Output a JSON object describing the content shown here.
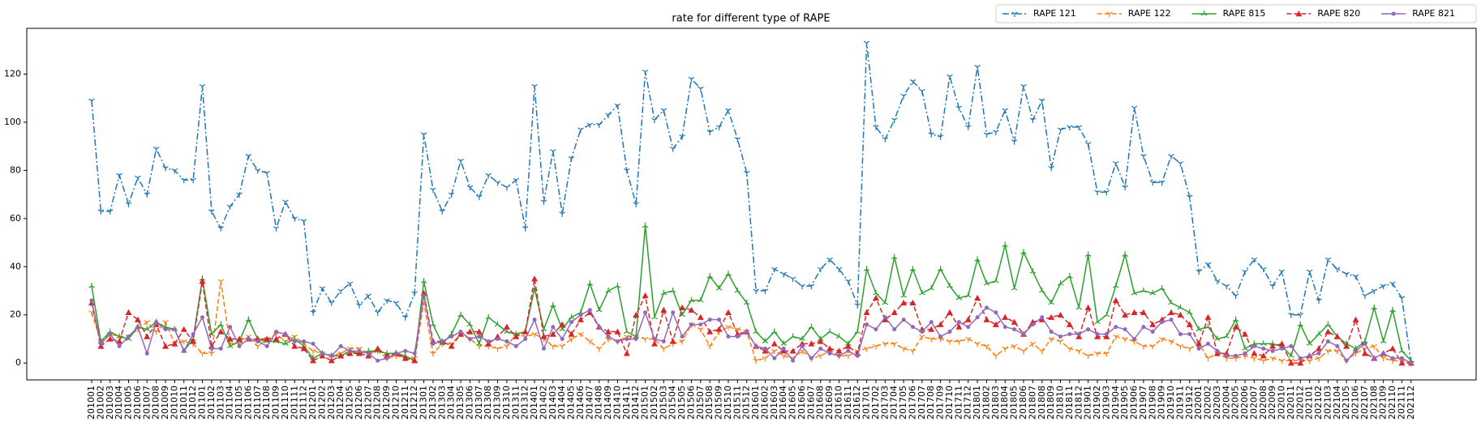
{
  "chart_data": {
    "type": "line",
    "title": "rate for different type of RAPE",
    "categories": [
      "201001",
      "201002",
      "201003",
      "201004",
      "201005",
      "201006",
      "201007",
      "201008",
      "201009",
      "201010",
      "201011",
      "201012",
      "201101",
      "201102",
      "201103",
      "201104",
      "201105",
      "201106",
      "201107",
      "201108",
      "201109",
      "201110",
      "201111",
      "201112",
      "201201",
      "201202",
      "201203",
      "201204",
      "201205",
      "201206",
      "201207",
      "201208",
      "201209",
      "201210",
      "201211",
      "201212",
      "201301",
      "201302",
      "201303",
      "201304",
      "201305",
      "201306",
      "201307",
      "201308",
      "201309",
      "201310",
      "201311",
      "201312",
      "201401",
      "201402",
      "201403",
      "201404",
      "201405",
      "201406",
      "201407",
      "201408",
      "201409",
      "201410",
      "201411",
      "201412",
      "201501",
      "201502",
      "201503",
      "201504",
      "201505",
      "201506",
      "201507",
      "201508",
      "201509",
      "201510",
      "201511",
      "201512",
      "201601",
      "201602",
      "201603",
      "201604",
      "201605",
      "201606",
      "201607",
      "201608",
      "201609",
      "201610",
      "201611",
      "201612",
      "201701",
      "201702",
      "201703",
      "201704",
      "201705",
      "201706",
      "201707",
      "201708",
      "201709",
      "201710",
      "201711",
      "201712",
      "201801",
      "201802",
      "201803",
      "201804",
      "201805",
      "201806",
      "201807",
      "201808",
      "201809",
      "201810",
      "201811",
      "201812",
      "201901",
      "201902",
      "201903",
      "201904",
      "201905",
      "201906",
      "201907",
      "201908",
      "201909",
      "201910",
      "201911",
      "201912",
      "202001",
      "202002",
      "202003",
      "202004",
      "202005",
      "202006",
      "202007",
      "202008",
      "202009",
      "202010",
      "202011",
      "202012",
      "202101",
      "202102",
      "202103",
      "202104",
      "202105",
      "202106",
      "202107",
      "202108",
      "202109",
      "202110",
      "202111",
      "202112"
    ],
    "series": [
      {
        "name": "RAPE 121",
        "color": "#1f77b4",
        "linestyle": "dashdot",
        "marker": "tri_down",
        "values": [
          109,
          63,
          63,
          78,
          66,
          77,
          70,
          89,
          81,
          80,
          76,
          76,
          115,
          63,
          56,
          65,
          70,
          86,
          80,
          79,
          56,
          67,
          60,
          59,
          21,
          31,
          25,
          30,
          33,
          24,
          28,
          21,
          26,
          25,
          19,
          29,
          95,
          72,
          63,
          70,
          84,
          73,
          69,
          78,
          75,
          73,
          76,
          56,
          115,
          67,
          88,
          62,
          85,
          97,
          99,
          99,
          103,
          107,
          80,
          66,
          121,
          101,
          105,
          89,
          94,
          118,
          114,
          96,
          98,
          105,
          93,
          79,
          30,
          30,
          39,
          37,
          35,
          32,
          32,
          39,
          43,
          39,
          34,
          24,
          133,
          98,
          93,
          101,
          111,
          117,
          113,
          95,
          94,
          119,
          106,
          98,
          123,
          95,
          96,
          105,
          92,
          115,
          101,
          109,
          81,
          97,
          98,
          98,
          91,
          71,
          71,
          83,
          73,
          106,
          86,
          75,
          75,
          86,
          83,
          69,
          38,
          41,
          34,
          32,
          28,
          38,
          43,
          39,
          32,
          38,
          20,
          20,
          38,
          26,
          43,
          39,
          37,
          36,
          28,
          30,
          32,
          33,
          27,
          0
        ]
      },
      {
        "name": "RAPE 122",
        "color": "#ff7f0e",
        "linestyle": "dashed",
        "marker": "tri_down",
        "values": [
          21,
          9,
          12,
          11,
          11,
          14,
          17,
          13,
          17,
          8,
          9,
          8,
          4,
          4,
          34,
          8,
          8,
          11,
          7,
          10,
          12,
          9,
          11,
          8,
          5,
          4,
          3,
          4,
          6,
          6,
          4,
          5,
          2,
          3,
          2,
          2,
          25,
          4,
          8,
          8,
          12,
          10,
          7,
          7,
          6,
          7,
          12,
          11,
          12,
          10,
          7,
          7,
          10,
          12,
          9,
          6,
          10,
          9,
          11,
          11,
          10,
          10,
          6,
          8,
          9,
          16,
          14,
          7,
          13,
          15,
          14,
          13,
          1,
          2,
          5,
          3,
          2,
          5,
          2,
          3,
          5,
          3,
          3,
          5,
          6,
          7,
          8,
          8,
          6,
          5,
          11,
          10,
          10,
          9,
          9,
          10,
          8,
          7,
          3,
          6,
          7,
          5,
          8,
          5,
          10,
          9,
          6,
          5,
          3,
          4,
          4,
          11,
          10,
          9,
          7,
          7,
          10,
          9,
          7,
          6,
          8,
          2,
          4,
          2,
          2,
          3,
          2,
          1,
          2,
          1,
          1,
          1,
          1,
          2,
          5,
          5,
          1,
          4,
          6,
          7,
          2,
          1,
          1,
          0
        ]
      },
      {
        "name": "RAPE 815",
        "color": "#2ca02c",
        "linestyle": "solid",
        "marker": "tri_up",
        "values": [
          32,
          9,
          13,
          11,
          10,
          15,
          14,
          17,
          15,
          14,
          5,
          10,
          35,
          12,
          16,
          7,
          9,
          18,
          10,
          9,
          9,
          8,
          10,
          7,
          2,
          4,
          3,
          3,
          5,
          4,
          5,
          5,
          4,
          4,
          3,
          1,
          34,
          16,
          8,
          12,
          20,
          16,
          8,
          19,
          16,
          13,
          12,
          13,
          31,
          14,
          24,
          14,
          19,
          21,
          33,
          22,
          30,
          32,
          13,
          11,
          57,
          19,
          29,
          30,
          20,
          26,
          26,
          36,
          31,
          37,
          30,
          25,
          13,
          9,
          13,
          8,
          11,
          10,
          15,
          10,
          13,
          11,
          8,
          13,
          39,
          29,
          25,
          44,
          28,
          39,
          29,
          31,
          39,
          32,
          27,
          28,
          43,
          33,
          34,
          49,
          31,
          46,
          38,
          30,
          25,
          33,
          36,
          23,
          45,
          17,
          20,
          32,
          45,
          29,
          30,
          29,
          31,
          25,
          23,
          21,
          14,
          15,
          10,
          11,
          18,
          6,
          8,
          8,
          8,
          7,
          3,
          16,
          8,
          12,
          16,
          11,
          8,
          6,
          9,
          23,
          9,
          22,
          5,
          1
        ]
      },
      {
        "name": "RAPE 820",
        "color": "#d62728",
        "linestyle": "dashed",
        "marker": "triangle",
        "values": [
          25,
          7,
          10,
          9,
          21,
          18,
          11,
          16,
          7,
          8,
          14,
          9,
          34,
          7,
          13,
          10,
          10,
          10,
          10,
          10,
          10,
          12,
          7,
          6,
          1,
          3,
          1,
          3,
          4,
          4,
          3,
          6,
          3,
          4,
          2,
          1,
          29,
          9,
          9,
          7,
          12,
          13,
          13,
          8,
          11,
          15,
          11,
          13,
          35,
          11,
          12,
          16,
          12,
          18,
          21,
          15,
          13,
          13,
          4,
          20,
          28,
          8,
          22,
          9,
          23,
          22,
          19,
          13,
          14,
          21,
          12,
          13,
          7,
          5,
          8,
          5,
          5,
          8,
          8,
          9,
          6,
          5,
          7,
          4,
          21,
          27,
          18,
          21,
          25,
          25,
          14,
          14,
          16,
          21,
          15,
          18,
          27,
          18,
          16,
          19,
          17,
          12,
          17,
          18,
          19,
          20,
          16,
          11,
          23,
          11,
          11,
          26,
          20,
          21,
          21,
          16,
          18,
          21,
          20,
          16,
          8,
          19,
          4,
          4,
          15,
          12,
          4,
          3,
          7,
          8,
          0,
          0,
          3,
          6,
          13,
          11,
          7,
          18,
          4,
          2,
          4,
          6,
          0,
          0
        ]
      },
      {
        "name": "RAPE 821",
        "color": "#9467bd",
        "linestyle": "solid",
        "marker": "circle",
        "values": [
          26,
          8,
          12,
          7,
          11,
          15,
          4,
          17,
          14,
          14,
          5,
          12,
          19,
          6,
          6,
          15,
          7,
          10,
          9,
          7,
          13,
          12,
          9,
          9,
          8,
          4,
          3,
          7,
          5,
          5,
          4,
          1,
          2,
          4,
          5,
          4,
          28,
          8,
          9,
          11,
          13,
          10,
          11,
          9,
          10,
          9,
          7,
          10,
          18,
          6,
          15,
          10,
          17,
          20,
          22,
          15,
          11,
          9,
          10,
          10,
          21,
          10,
          9,
          21,
          11,
          16,
          16,
          18,
          18,
          11,
          11,
          13,
          7,
          6,
          2,
          6,
          1,
          7,
          2,
          6,
          4,
          3,
          5,
          3,
          16,
          14,
          19,
          14,
          18,
          15,
          13,
          17,
          11,
          13,
          17,
          15,
          19,
          23,
          21,
          15,
          14,
          12,
          16,
          19,
          13,
          11,
          12,
          12,
          14,
          12,
          12,
          15,
          14,
          10,
          15,
          13,
          17,
          18,
          12,
          12,
          6,
          8,
          5,
          3,
          3,
          4,
          7,
          6,
          5,
          6,
          7,
          2,
          3,
          4,
          9,
          7,
          1,
          5,
          8,
          2,
          4,
          2,
          2,
          0
        ]
      }
    ],
    "ylim": [
      -7,
      139
    ],
    "yticks": [
      0,
      20,
      40,
      60,
      80,
      100,
      120
    ],
    "legend": "upper right"
  }
}
